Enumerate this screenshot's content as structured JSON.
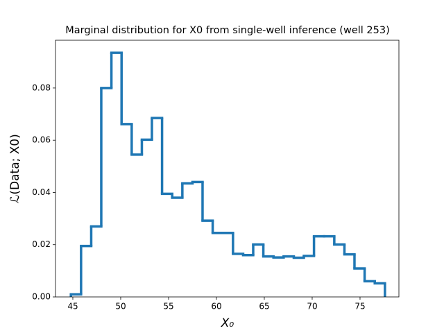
{
  "chart_data": {
    "type": "histogram",
    "title": "Marginal distribution for X0 from single-well inference (well 253)",
    "x_label": "X₀",
    "y_label": "ℒ(Data; X0)",
    "color": "#1f77b4",
    "histtype": "step",
    "grid": false,
    "bins": [
      44.8,
      45.86,
      46.92,
      47.97,
      49.03,
      50.09,
      51.15,
      52.21,
      53.26,
      54.32,
      55.38,
      56.44,
      57.5,
      58.55,
      59.61,
      60.67,
      61.73,
      62.79,
      63.84,
      64.9,
      65.96,
      67.02,
      68.08,
      69.13,
      70.19,
      71.25,
      72.31,
      73.37,
      74.42,
      75.48,
      76.54,
      77.6
    ],
    "values": [
      0.001,
      0.0195,
      0.027,
      0.08,
      0.0935,
      0.0662,
      0.0545,
      0.0602,
      0.0685,
      0.0395,
      0.038,
      0.0435,
      0.044,
      0.0292,
      0.0245,
      0.0245,
      0.0165,
      0.016,
      0.0201,
      0.0155,
      0.0151,
      0.0155,
      0.015,
      0.0157,
      0.0232,
      0.0232,
      0.0201,
      0.0163,
      0.0109,
      0.006,
      0.0052
    ],
    "xlim": [
      43.19,
      79.06
    ],
    "xticks": [
      45,
      50,
      55,
      60,
      65,
      70,
      75
    ],
    "ylim": [
      0,
      0.0983
    ],
    "yticks": [
      {
        "value": 0,
        "label": "0.00"
      },
      {
        "value": 0.02,
        "label": "0.02"
      },
      {
        "value": 0.04,
        "label": "0.04"
      },
      {
        "value": 0.06,
        "label": "0.06"
      },
      {
        "value": 0.08,
        "label": "0.08"
      }
    ]
  }
}
